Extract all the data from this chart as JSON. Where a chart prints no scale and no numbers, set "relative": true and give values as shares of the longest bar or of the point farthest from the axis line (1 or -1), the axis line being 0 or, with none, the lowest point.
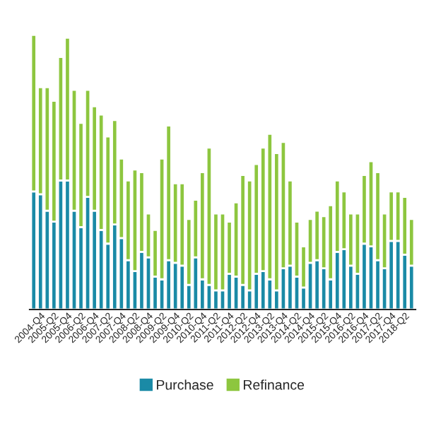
{
  "chart_data": {
    "type": "bar",
    "stacked": true,
    "relative": true,
    "legend": "bottom",
    "grid": false,
    "categories": [
      null,
      "2004-Q4",
      null,
      "2005-Q2",
      null,
      "2005-Q4",
      null,
      "2006-Q2",
      null,
      "2006-Q4",
      null,
      "2007-Q2",
      null,
      "2007-Q4",
      null,
      "2008-Q2",
      null,
      "2008-Q4",
      null,
      "2009-Q2",
      null,
      "2009-Q4",
      null,
      "2010-Q2",
      null,
      "2010-Q4",
      null,
      "2011-Q2",
      null,
      "2011-Q4",
      null,
      "2012-Q2",
      null,
      "2012-Q4",
      null,
      "2013-Q2",
      null,
      "2013-Q4",
      null,
      "2014-Q2",
      null,
      "2014-Q4",
      null,
      "2015-Q2",
      null,
      "2015-Q4",
      null,
      "2016-Q2",
      null,
      "2016-Q4",
      null,
      "2017-Q2",
      null,
      "2017-Q4",
      null,
      "2018-Q2",
      null
    ],
    "series": [
      {
        "name": "Purchase",
        "color": "#1a8aa6",
        "values": [
          0.43,
          0.42,
          0.36,
          0.32,
          0.47,
          0.47,
          0.36,
          0.3,
          0.41,
          0.36,
          0.29,
          0.24,
          0.31,
          0.26,
          0.18,
          0.14,
          0.21,
          0.19,
          0.12,
          0.11,
          0.18,
          0.17,
          0.16,
          0.09,
          0.19,
          0.11,
          0.09,
          0.07,
          0.07,
          0.13,
          0.12,
          0.09,
          0.07,
          0.13,
          0.14,
          0.11,
          0.07,
          0.15,
          0.16,
          0.12,
          0.08,
          0.17,
          0.18,
          0.15,
          0.11,
          0.21,
          0.22,
          0.16,
          0.13,
          0.24,
          0.23,
          0.18,
          0.15,
          0.25,
          0.25,
          0.2,
          0.16
        ]
      },
      {
        "name": "Refinance",
        "color": "#8dc63f",
        "values": [
          0.57,
          0.39,
          0.45,
          0.44,
          0.45,
          0.52,
          0.44,
          0.38,
          0.39,
          0.38,
          0.42,
          0.39,
          0.38,
          0.29,
          0.29,
          0.37,
          0.29,
          0.16,
          0.17,
          0.44,
          0.49,
          0.29,
          0.3,
          0.24,
          0.21,
          0.39,
          0.5,
          0.28,
          0.28,
          0.19,
          0.27,
          0.4,
          0.4,
          0.4,
          0.45,
          0.53,
          0.5,
          0.46,
          0.31,
          0.2,
          0.15,
          0.16,
          0.18,
          0.19,
          0.27,
          0.26,
          0.21,
          0.19,
          0.22,
          0.25,
          0.31,
          0.32,
          0.2,
          0.18,
          0.18,
          0.21,
          0.17
        ]
      }
    ]
  }
}
